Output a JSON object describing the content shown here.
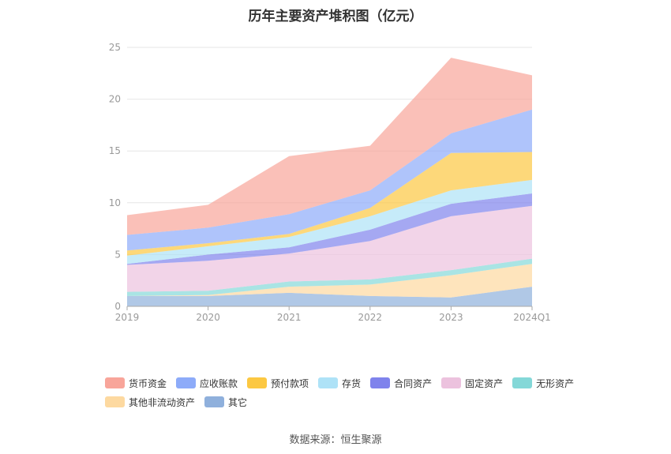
{
  "chart_data": {
    "type": "area",
    "stacked": true,
    "title": "历年主要资产堆积图（亿元）",
    "categories": [
      "2019",
      "2020",
      "2021",
      "2022",
      "2023",
      "2024Q1"
    ],
    "ylim": [
      0,
      25
    ],
    "yticks": [
      0,
      5,
      10,
      15,
      20,
      25
    ],
    "grid": true,
    "legend_position": "bottom",
    "series": [
      {
        "name": "其它",
        "color": "#8fb0dc",
        "values": [
          1.0,
          1.0,
          1.3,
          1.0,
          0.85,
          1.9
        ]
      },
      {
        "name": "其他非流动资产",
        "color": "#fdd9a0",
        "values": [
          0.0,
          0.1,
          0.6,
          1.1,
          2.15,
          2.2
        ]
      },
      {
        "name": "无形资产",
        "color": "#84d8d8",
        "values": [
          0.4,
          0.4,
          0.5,
          0.5,
          0.5,
          0.5
        ]
      },
      {
        "name": "固定资产",
        "color": "#ecc2de",
        "values": [
          2.6,
          2.9,
          2.7,
          3.7,
          5.2,
          5.1
        ]
      },
      {
        "name": "合同资产",
        "color": "#7f83ec",
        "values": [
          0.1,
          0.6,
          0.6,
          1.1,
          1.2,
          1.2
        ]
      },
      {
        "name": "存货",
        "color": "#aee2f7",
        "values": [
          0.8,
          0.8,
          1.0,
          1.3,
          1.3,
          1.3
        ]
      },
      {
        "name": "预付款项",
        "color": "#fcc842",
        "values": [
          0.5,
          0.3,
          0.3,
          0.8,
          3.6,
          2.7
        ]
      },
      {
        "name": "应收账款",
        "color": "#8dabf9",
        "values": [
          1.5,
          1.5,
          1.9,
          1.7,
          1.9,
          4.1
        ]
      },
      {
        "name": "货币资金",
        "color": "#f8a59a",
        "values": [
          1.9,
          2.2,
          5.6,
          4.3,
          7.3,
          3.3
        ]
      }
    ]
  },
  "legend": {
    "row1": [
      "货币资金",
      "应收账款",
      "预付款项",
      "存货",
      "合同资产",
      "固定资产",
      "无形资产"
    ],
    "row2": [
      "其他非流动资产",
      "其它"
    ],
    "colors": {
      "货币资金": "#f8a59a",
      "应收账款": "#8dabf9",
      "预付款项": "#fcc842",
      "存货": "#aee2f7",
      "合同资产": "#7f83ec",
      "固定资产": "#ecc2de",
      "无形资产": "#84d8d8",
      "其他非流动资产": "#fdd9a0",
      "其它": "#8fb0dc"
    }
  },
  "source": "数据来源：恒生聚源"
}
